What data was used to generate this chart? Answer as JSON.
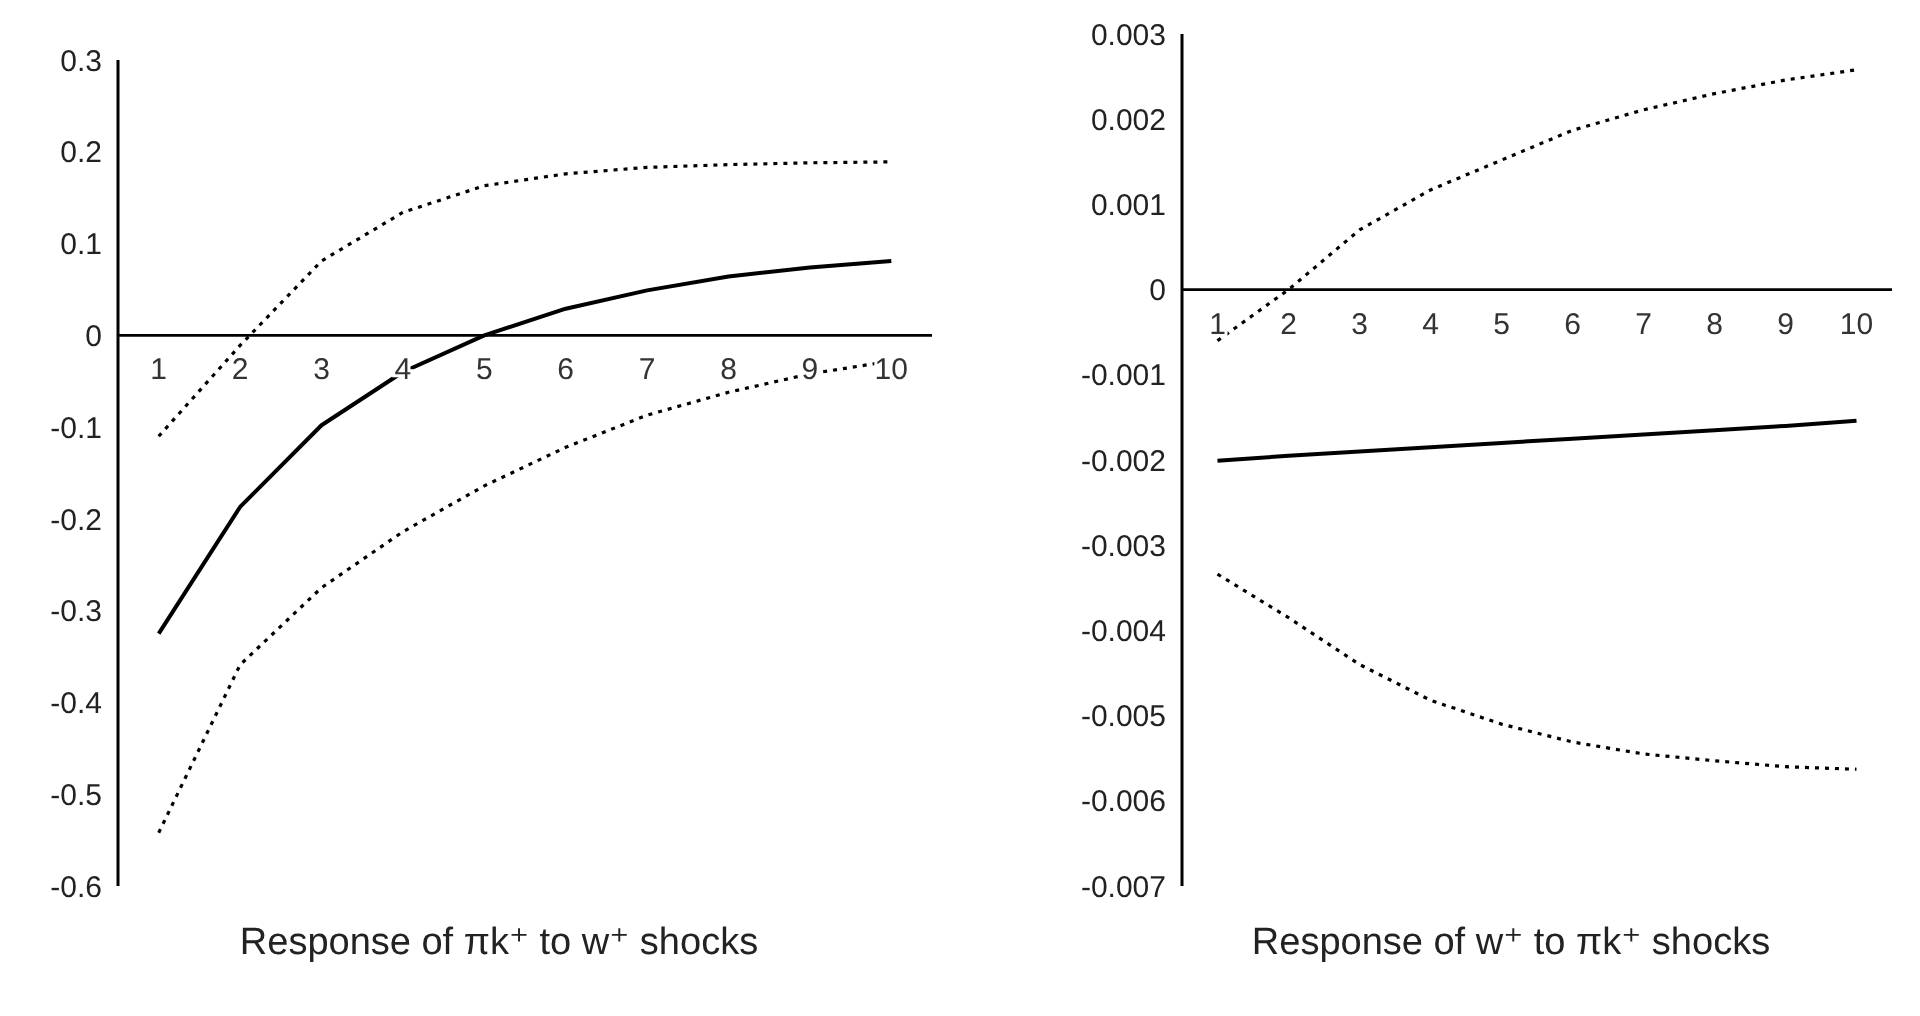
{
  "chart_data": [
    {
      "type": "line",
      "title": "Response of πk⁺ to w⁺ shocks",
      "categories": [
        "1",
        "2",
        "3",
        "4",
        "5",
        "6",
        "7",
        "8",
        "9",
        "10"
      ],
      "series": [
        {
          "color": "#000000",
          "line_style": "solid",
          "values": [
            -0.325,
            -0.187,
            -0.098,
            -0.04,
            0,
            0.029,
            0.049,
            0.064,
            0.074,
            0.081
          ]
        },
        {
          "color": "#000000",
          "line_style": "dotted",
          "values": [
            -0.11,
            -0.011,
            0.081,
            0.134,
            0.163,
            0.176,
            0.183,
            0.186,
            0.188,
            0.189
          ]
        },
        {
          "color": "#000000",
          "line_style": "dotted",
          "values": [
            -0.542,
            -0.359,
            -0.275,
            -0.214,
            -0.164,
            -0.122,
            -0.087,
            -0.062,
            -0.042,
            -0.028
          ]
        }
      ],
      "ylim": [
        -0.6,
        0.3
      ],
      "yticks": [
        -0.6,
        -0.5,
        -0.4,
        -0.3,
        -0.2,
        -0.1,
        0,
        0.1,
        0.2,
        0.3
      ],
      "marker": "none",
      "grid": false,
      "legend": false
    },
    {
      "type": "line",
      "title": "Response of w⁺ to πk⁺ shocks",
      "categories": [
        "1",
        "2",
        "3",
        "4",
        "5",
        "6",
        "7",
        "8",
        "9",
        "10"
      ],
      "series": [
        {
          "color": "#000000",
          "line_style": "solid",
          "values": [
            -0.00201,
            -0.00195,
            -0.0019,
            -0.00185,
            -0.0018,
            -0.00175,
            -0.0017,
            -0.00165,
            -0.0016,
            -0.00154
          ]
        },
        {
          "color": "#000000",
          "line_style": "dotted",
          "values": [
            -0.0006,
            0,
            0.0007,
            0.00117,
            0.00152,
            0.00187,
            0.00211,
            0.0023,
            0.00246,
            0.00258
          ]
        },
        {
          "color": "#000000",
          "line_style": "dotted",
          "values": [
            -0.00334,
            -0.00385,
            -0.0044,
            -0.00482,
            -0.0051,
            -0.00531,
            -0.00545,
            -0.00553,
            -0.0056,
            -0.00563
          ]
        }
      ],
      "ylim": [
        -0.007,
        0.003
      ],
      "yticks": [
        -0.007,
        -0.006,
        -0.005,
        -0.004,
        -0.003,
        -0.002,
        -0.001,
        0,
        0.001,
        0.002,
        0.003
      ],
      "marker": "none",
      "grid": false,
      "legend": false
    }
  ]
}
